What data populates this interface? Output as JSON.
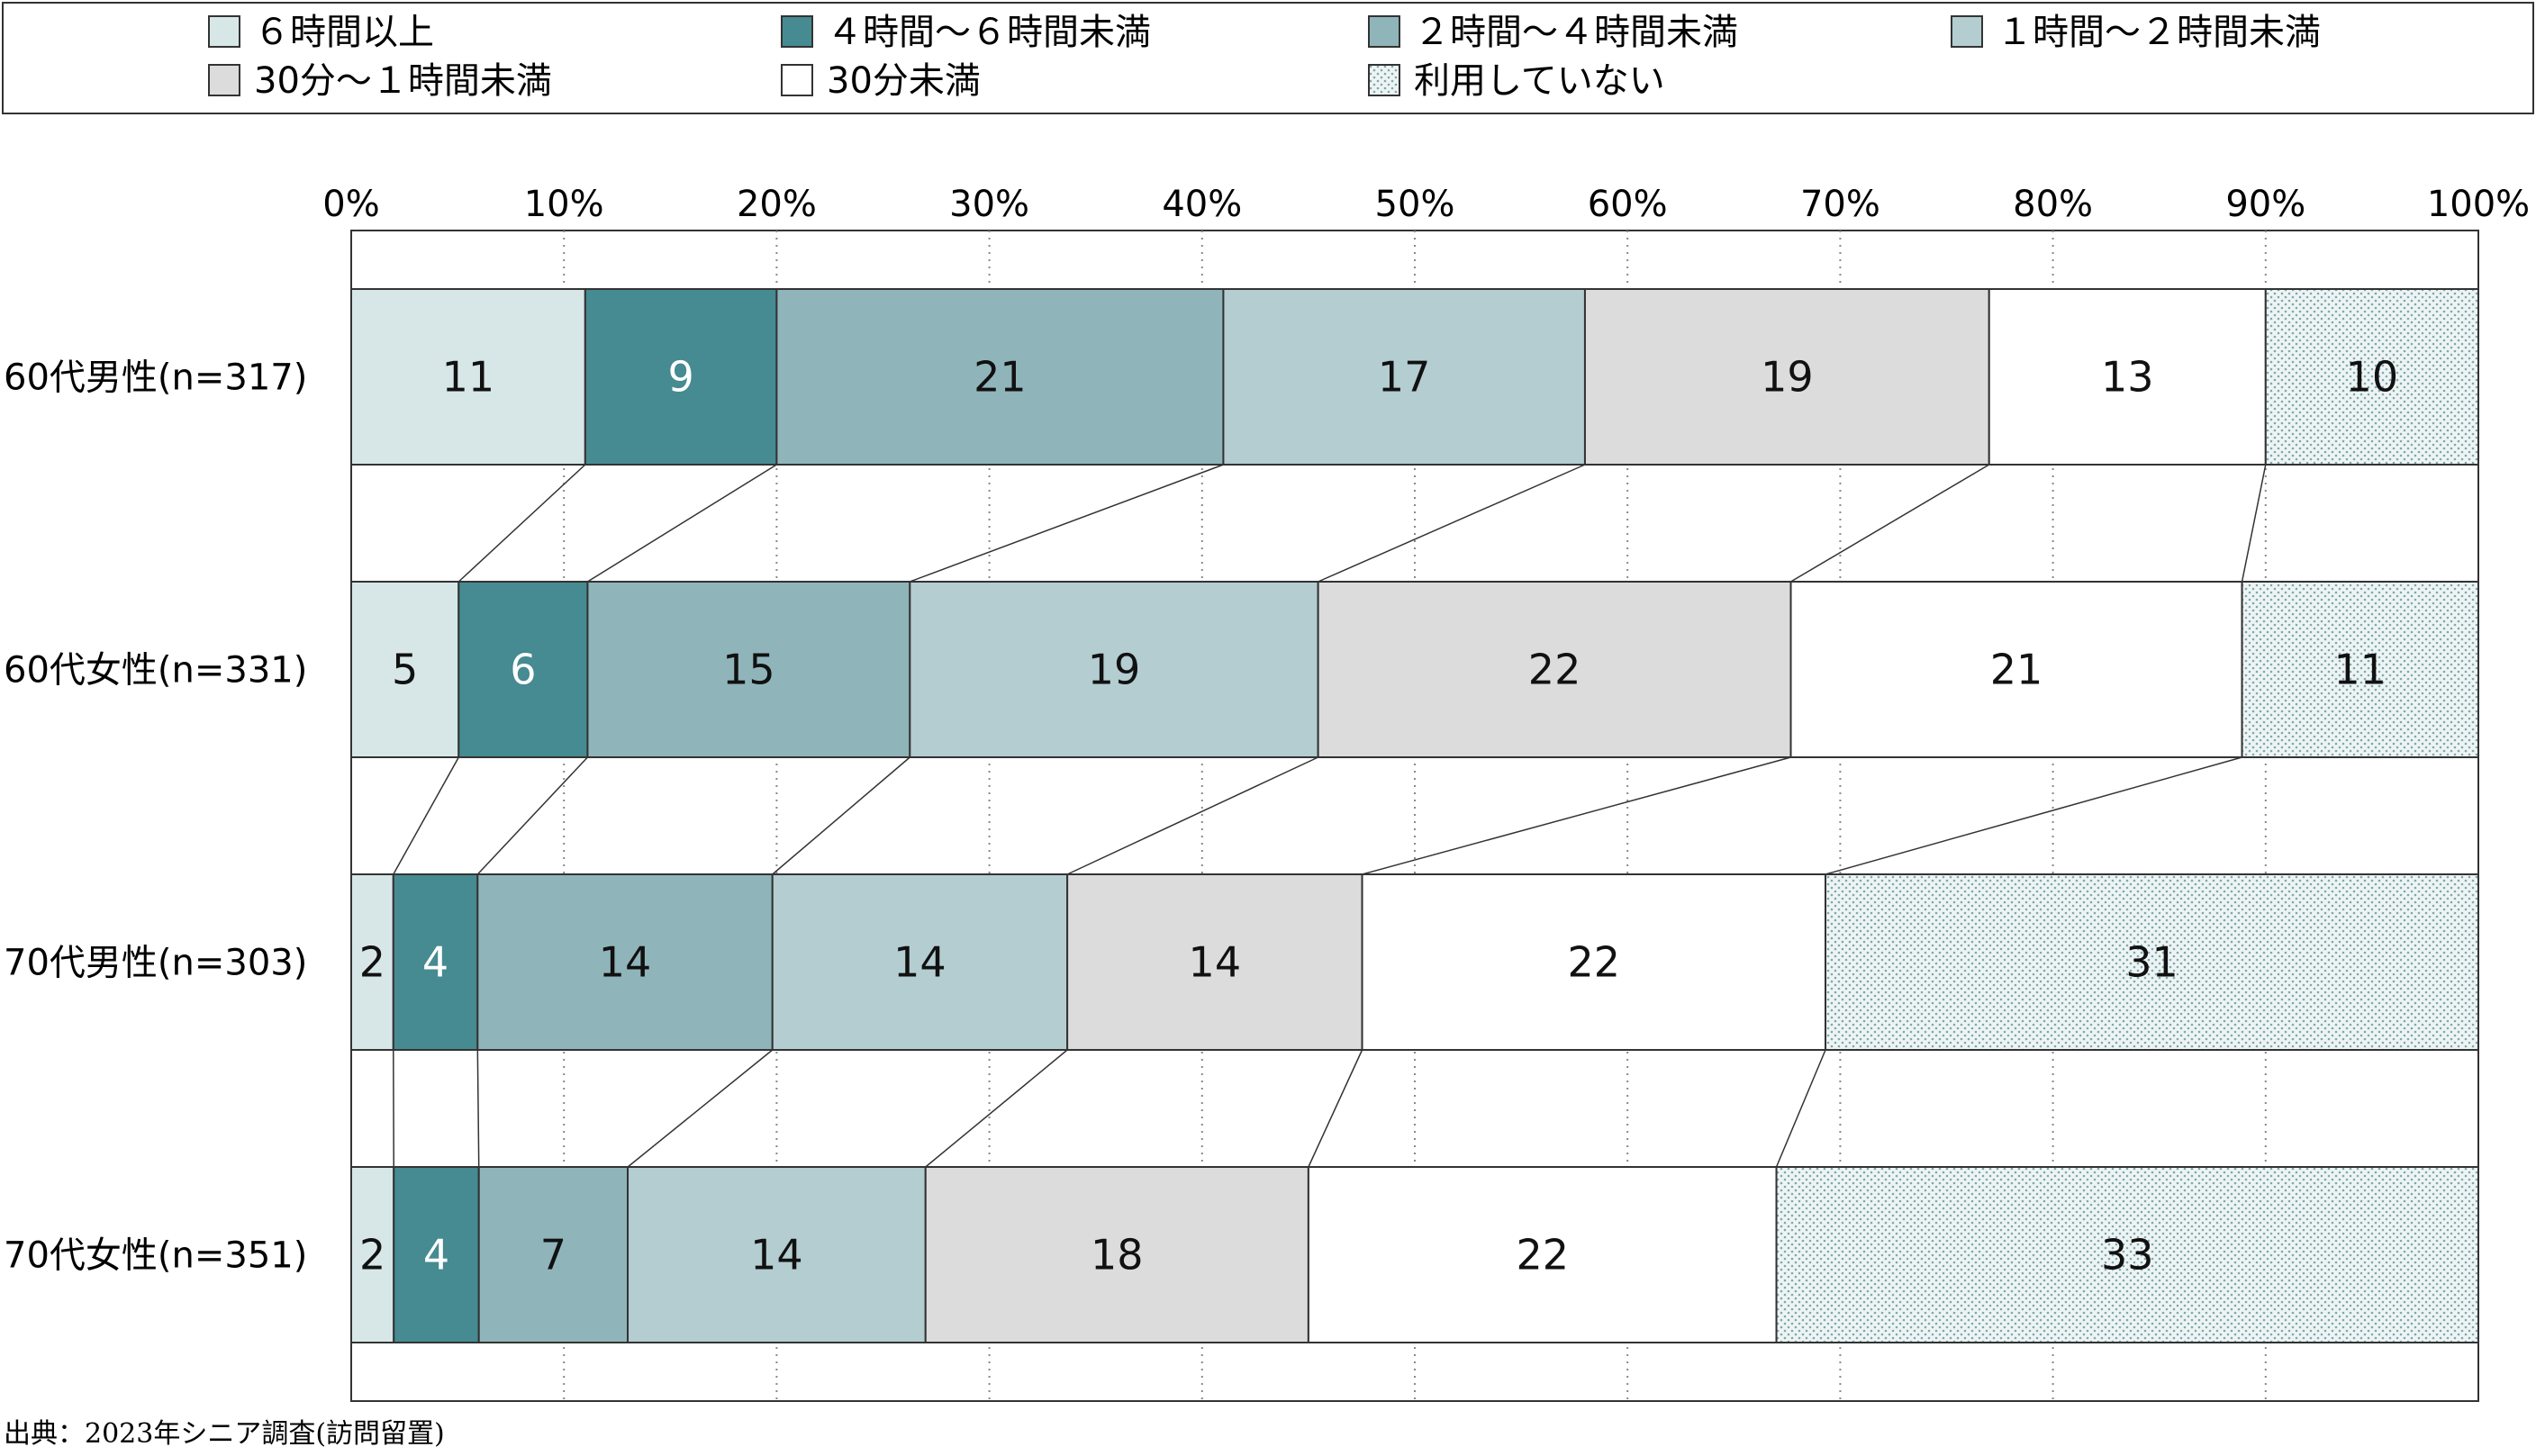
{
  "chart_data": {
    "type": "bar",
    "orientation": "horizontal",
    "stacked": true,
    "percent_stacked": true,
    "categories": [
      "60代男性(n=317)",
      "60代女性(n=331)",
      "70代男性(n=303)",
      "70代女性(n=351)"
    ],
    "series": [
      {
        "name": "６時間以上",
        "color": "#d7e7e8",
        "values": [
          11,
          5,
          2,
          2
        ]
      },
      {
        "name": "４時間～６時間未満",
        "color": "#468a92",
        "values": [
          9,
          6,
          4,
          4
        ]
      },
      {
        "name": "２時間～４時間未満",
        "color": "#8fb5ba",
        "values": [
          21,
          15,
          14,
          7
        ]
      },
      {
        "name": "１時間～２時間未満",
        "color": "#b3cdd1",
        "values": [
          17,
          19,
          14,
          14
        ]
      },
      {
        "name": "30分～１時間未満",
        "color": "#dcdcdc",
        "values": [
          19,
          22,
          14,
          18
        ]
      },
      {
        "name": "30分未満",
        "color": "#ffffff",
        "values": [
          13,
          21,
          22,
          22
        ]
      },
      {
        "name": "利用していない",
        "color": "#e9f1f1",
        "pattern": "dots",
        "values": [
          10,
          11,
          31,
          33
        ]
      }
    ],
    "xlim": [
      0,
      100
    ],
    "x_ticks": [
      "0%",
      "10%",
      "20%",
      "30%",
      "40%",
      "50%",
      "60%",
      "70%",
      "80%",
      "90%",
      "100%"
    ],
    "grid": "vertical-dotted",
    "legend_position": "top",
    "connector_lines": true,
    "title": "",
    "xlabel": "",
    "ylabel": ""
  },
  "source_note": "出典：2023年シニア調査(訪問留置)"
}
